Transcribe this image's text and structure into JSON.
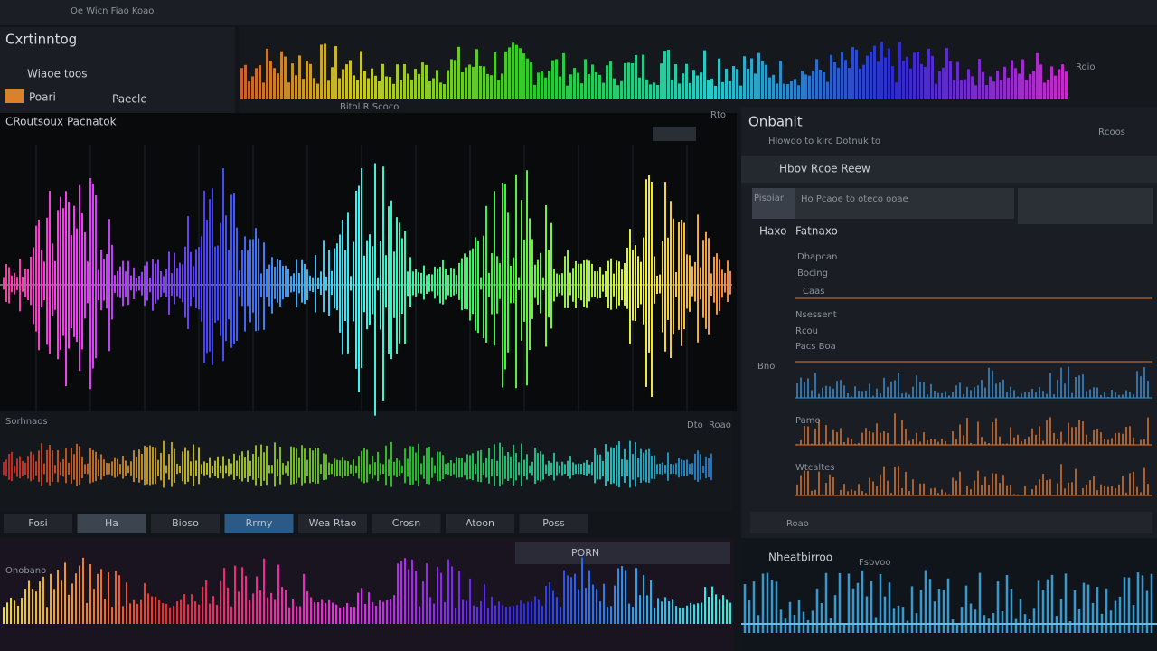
{
  "toolbar": {
    "title": "Oe Wicn Fiao Koao"
  },
  "left_panel": {
    "title": "Cxrtinntog",
    "items": [
      "Wiaoe toos",
      "Poari",
      "Paecle"
    ]
  },
  "top_track": {
    "label": "Bitol R Scoco",
    "tag": "Roio"
  },
  "main_editor": {
    "title": "CRoutsoux Pacnatok",
    "tag": "Rto"
  },
  "lower_track": {
    "title": "Sorhnaos",
    "right_labels": [
      "Dto",
      "Roao"
    ]
  },
  "buttons": [
    "Fosi",
    "Ha",
    "Bioso",
    "Rrrny",
    "Wea Rtao",
    "Crosn",
    "Atoon",
    "Poss"
  ],
  "inspector": {
    "title": "Onbanit",
    "subtitle": "Hlowdo to kirc Dotnuk to",
    "corner": "Rcoos",
    "section": "Hbov Rcoe Reew",
    "tab": "Pisoiar",
    "tab_text": "Ho Pcaoe to oteco ooae",
    "header": [
      "Haxo",
      "Fatnaxo"
    ],
    "rows": [
      "Dhapcan",
      "Bocing",
      "Caas",
      "Nsessent",
      "Rcou",
      "Pacs Boa",
      "Bno",
      "Pamo",
      "Wtcaltes"
    ],
    "footer": "Roao"
  },
  "bottom_left": {
    "title": "Onobano",
    "button": "PORN"
  },
  "bottom_right": {
    "title": "Nheatbirroo",
    "tag": "Fsbvoo"
  }
}
